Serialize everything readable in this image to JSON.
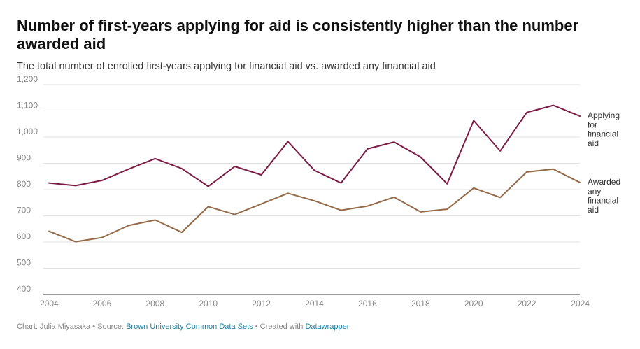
{
  "header": {
    "title": "Number of first-years applying for aid is consistently higher than the number awarded aid",
    "subtitle": "The total number of enrolled first-years applying for financial aid vs. awarded any financial aid"
  },
  "footer": {
    "chart_prefix": "Chart: Julia Miyasaka • Source: ",
    "source_link": "Brown University Common Data Sets",
    "created_prefix": " • Created with ",
    "tool_link": "Datawrapper"
  },
  "colors": {
    "applying": "#7b1c45",
    "awarded": "#946a47",
    "grid": "#e0e0e0",
    "axis": "#333333",
    "link": "#1d81a2"
  },
  "chart_data": {
    "type": "line",
    "title": "Number of first-years applying for aid is consistently higher than the number awarded aid",
    "subtitle": "The total number of enrolled first-years applying for financial aid vs. awarded any financial aid",
    "x": [
      2004,
      2005,
      2006,
      2007,
      2008,
      2009,
      2010,
      2011,
      2012,
      2013,
      2014,
      2015,
      2016,
      2017,
      2018,
      2019,
      2020,
      2021,
      2022,
      2023,
      2024
    ],
    "x_ticks": [
      2004,
      2006,
      2008,
      2010,
      2012,
      2014,
      2016,
      2018,
      2020,
      2022,
      2024
    ],
    "y_ticks": [
      "400",
      "500",
      "600",
      "700",
      "800",
      "900",
      "1,000",
      "1,100",
      "1,200"
    ],
    "ylim": [
      400,
      1200
    ],
    "grid": true,
    "legend": "inline labels at right end of lines",
    "series": [
      {
        "name": "Applying for financial aid",
        "label_lines": [
          "Applying",
          "for",
          "financial",
          "aid"
        ],
        "color": "#7b1c45",
        "values": [
          825,
          815,
          835,
          878,
          918,
          880,
          812,
          888,
          856,
          983,
          873,
          825,
          955,
          981,
          924,
          822,
          1063,
          947,
          1094,
          1121,
          1080
        ]
      },
      {
        "name": "Awarded any financial aid",
        "label_lines": [
          "Awarded",
          "any",
          "financial",
          "aid"
        ],
        "color": "#946a47",
        "values": [
          641,
          601,
          617,
          663,
          684,
          637,
          735,
          705,
          745,
          786,
          757,
          721,
          737,
          771,
          715,
          725,
          806,
          770,
          867,
          878,
          827
        ]
      }
    ]
  }
}
